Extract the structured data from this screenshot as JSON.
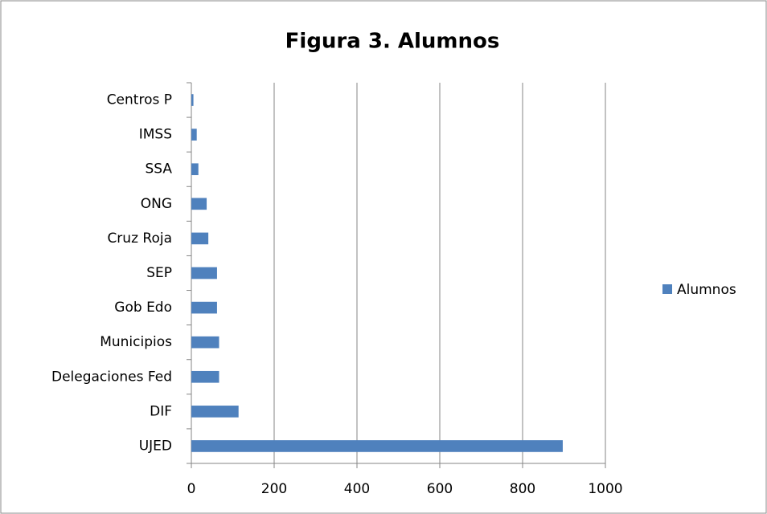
{
  "chart_data": {
    "type": "bar",
    "orientation": "horizontal",
    "title": "Figura 3. Alumnos",
    "categories": [
      "UJED",
      "DIF",
      "Delegaciones Fed",
      "Municipios",
      "Gob Edo",
      "SEP",
      "Cruz Roja",
      "ONG",
      "SSA",
      "IMSS",
      "Centros P"
    ],
    "series": [
      {
        "name": "Alumnos",
        "color": "#4f81bd",
        "values": [
          897,
          114,
          67,
          67,
          62,
          62,
          41,
          37,
          17,
          13,
          5
        ]
      }
    ],
    "xlim": [
      0,
      1000
    ],
    "xticks": [
      0,
      200,
      400,
      600,
      800,
      1000
    ],
    "grid": true,
    "legend": "right"
  }
}
